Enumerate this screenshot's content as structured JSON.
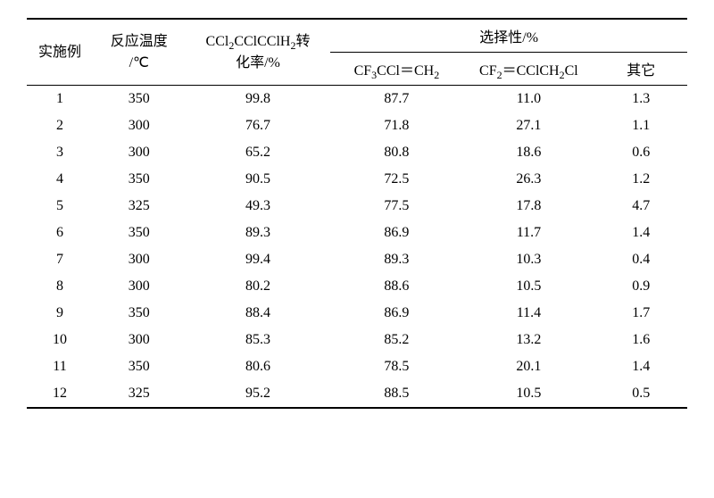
{
  "table": {
    "headers": {
      "col1_line1": "实施例",
      "col2_line1": "反应温度",
      "col2_line2": "/℃",
      "col3_line1": "CCl",
      "col3_sub1": "2",
      "col3_mid": "CClCClH",
      "col3_sub2": "2",
      "col3_tail": "转",
      "col3_line2": "化率/%",
      "sel_group": "选择性/%",
      "col4_a": "CF",
      "col4_sub1": "3",
      "col4_b": "CCl＝CH",
      "col4_sub2": "2",
      "col5_a": "CF",
      "col5_sub1": "2",
      "col5_b": "＝CClCH",
      "col5_sub2": "2",
      "col5_c": "Cl",
      "col6": "其它"
    },
    "rows": [
      [
        "1",
        "350",
        "99.8",
        "87.7",
        "11.0",
        "1.3"
      ],
      [
        "2",
        "300",
        "76.7",
        "71.8",
        "27.1",
        "1.1"
      ],
      [
        "3",
        "300",
        "65.2",
        "80.8",
        "18.6",
        "0.6"
      ],
      [
        "4",
        "350",
        "90.5",
        "72.5",
        "26.3",
        "1.2"
      ],
      [
        "5",
        "325",
        "49.3",
        "77.5",
        "17.8",
        "4.7"
      ],
      [
        "6",
        "350",
        "89.3",
        "86.9",
        "11.7",
        "1.4"
      ],
      [
        "7",
        "300",
        "99.4",
        "89.3",
        "10.3",
        "0.4"
      ],
      [
        "8",
        "300",
        "80.2",
        "88.6",
        "10.5",
        "0.9"
      ],
      [
        "9",
        "350",
        "88.4",
        "86.9",
        "11.4",
        "1.7"
      ],
      [
        "10",
        "300",
        "85.3",
        "85.2",
        "13.2",
        "1.6"
      ],
      [
        "11",
        "350",
        "80.6",
        "78.5",
        "20.1",
        "1.4"
      ],
      [
        "12",
        "325",
        "95.2",
        "88.5",
        "10.5",
        "0.5"
      ]
    ]
  }
}
